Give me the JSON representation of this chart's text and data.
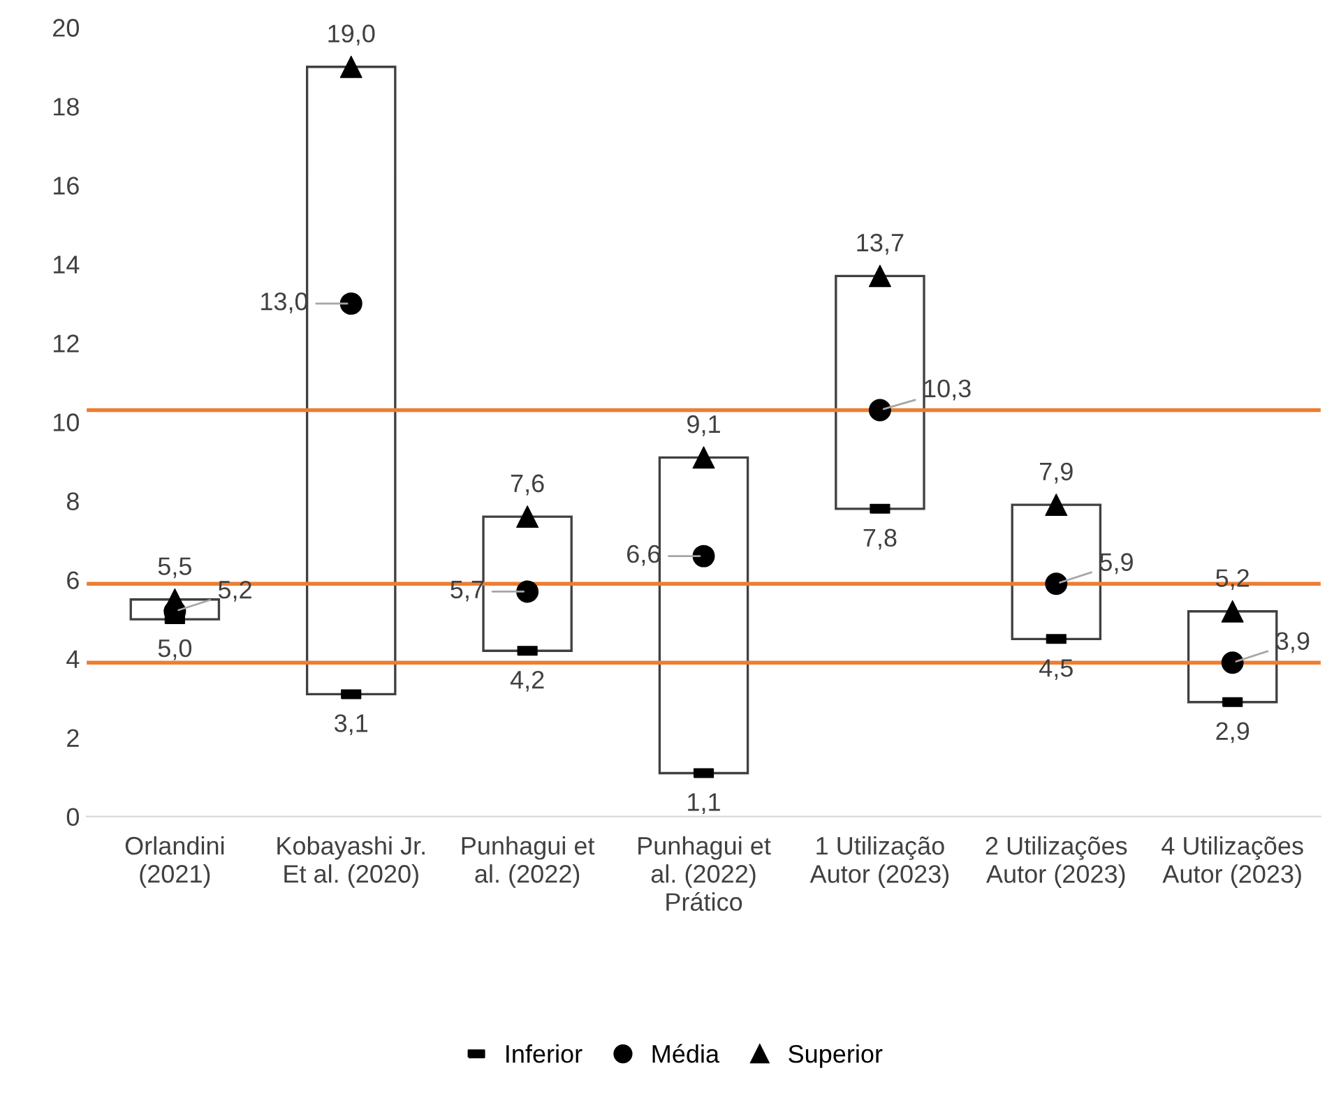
{
  "chart_data": {
    "type": "bar",
    "categories": [
      "Orlandini (2021)",
      "Kobayashi Jr. Et al. (2020)",
      "Punhagui et al. (2022)",
      "Punhagui et al. (2022) Prático",
      "1 Utilização Autor (2023)",
      "2 Utilizações Autor (2023)",
      "4 Utilizações Autor (2023)"
    ],
    "series": [
      {
        "color": "#ffffff",
        "base": [
          5.0,
          3.1,
          4.2,
          1.1,
          7.8,
          4.5,
          2.9
        ],
        "values": [
          0.5,
          15.9,
          3.4,
          8.0,
          5.9,
          3.4,
          2.3
        ]
      },
      {
        "type": "scatter",
        "name": "Inferior",
        "color": "#000000",
        "values": [
          5.0,
          3.1,
          4.2,
          1.1,
          7.8,
          4.5,
          2.9
        ],
        "value_labels": [
          "5,0",
          "3,1",
          "4,2",
          "1,1",
          "7,8",
          "4,5",
          "2,9"
        ]
      },
      {
        "type": "scatter",
        "name": "Média",
        "color": "#000000",
        "marker": "circle",
        "values": [
          5.2,
          13.0,
          5.7,
          6.6,
          10.3,
          5.9,
          3.9
        ],
        "value_labels": [
          "5,2",
          "13,0",
          "5,7",
          "6,6",
          "10,3",
          "5,9",
          "3,9"
        ]
      },
      {
        "type": "scatter",
        "name": "Superior",
        "color": "#000000",
        "marker": "triangle",
        "values": [
          5.5,
          19.0,
          7.6,
          9.1,
          13.7,
          7.9,
          5.2
        ],
        "value_labels": [
          "5,5",
          "19,0",
          "7,6",
          "9,1",
          "13,7",
          "7,9",
          "5,2"
        ]
      }
    ],
    "ref_lines": [
      {
        "axis": "y",
        "value": 10.3,
        "color": "#ed7d31"
      },
      {
        "axis": "y",
        "value": 5.9,
        "color": "#ed7d31"
      },
      {
        "axis": "y",
        "value": 3.9,
        "color": "#ed7d31"
      }
    ],
    "ylim": [
      0,
      20
    ],
    "yticks": [
      0,
      2,
      4,
      6,
      8,
      10,
      12,
      14,
      16,
      18,
      20
    ],
    "grid": false,
    "legend": "bottom"
  }
}
